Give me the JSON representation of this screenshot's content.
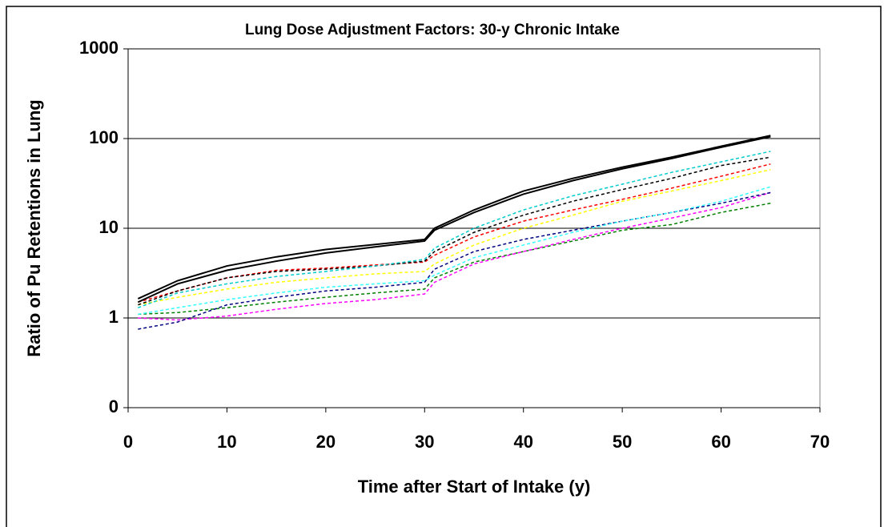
{
  "chart_data": {
    "type": "line",
    "title": "Lung Dose Adjustment Factors: 30-y Chronic Intake",
    "x_label": "Time after Start of Intake (y)",
    "y_label": "Ratio of Pu Retentions in Lung",
    "log_y": true,
    "grid": true,
    "xlim": [
      0,
      70
    ],
    "xticks": [
      0,
      10,
      20,
      30,
      40,
      50,
      60,
      70
    ],
    "ylim": [
      0.1,
      1000
    ],
    "yticks": [
      {
        "value": 0.1,
        "label": "0"
      },
      1,
      10,
      100,
      1000
    ],
    "x": [
      1,
      5,
      10,
      15,
      20,
      25,
      30,
      31,
      35,
      40,
      45,
      50,
      55,
      60,
      65
    ],
    "series": [
      {
        "color": "#000000",
        "dashed": false,
        "values": [
          1.64,
          2.6,
          3.8,
          4.8,
          5.8,
          6.6,
          7.5,
          10,
          16,
          26,
          36,
          48,
          62,
          82,
          108
        ]
      },
      {
        "color": "#000000",
        "dashed": false,
        "values": [
          1.5,
          2.4,
          3.4,
          4.3,
          5.3,
          6.2,
          7.2,
          9.5,
          15,
          24,
          34,
          46,
          60,
          80,
          105
        ]
      },
      {
        "color": "#00cccc",
        "dashed": true,
        "values": [
          1.3,
          1.9,
          2.4,
          2.9,
          3.3,
          3.8,
          4.5,
          6,
          10,
          16,
          23,
          31,
          42,
          55,
          72
        ]
      },
      {
        "color": "#000000",
        "dashed": true,
        "values": [
          1.4,
          2.0,
          2.8,
          3.3,
          3.5,
          3.8,
          4.3,
          5.5,
          9,
          14,
          20,
          27,
          36,
          50,
          62
        ]
      },
      {
        "color": "#ff0000",
        "dashed": true,
        "values": [
          1.5,
          2.0,
          2.8,
          3.4,
          3.6,
          3.9,
          4.2,
          5,
          8,
          12,
          16,
          21,
          28,
          38,
          52
        ]
      },
      {
        "color": "#ffff00",
        "dashed": true,
        "values": [
          1.4,
          1.7,
          2.1,
          2.5,
          2.8,
          3.1,
          3.3,
          4,
          6.5,
          10,
          14,
          20,
          26,
          34,
          45
        ]
      },
      {
        "color": "#33ffff",
        "dashed": true,
        "values": [
          1.1,
          1.3,
          1.6,
          1.9,
          2.2,
          2.4,
          2.6,
          3,
          4.7,
          6.5,
          9,
          12,
          15,
          20,
          29
        ]
      },
      {
        "color": "#000080",
        "dashed": true,
        "values": [
          0.75,
          0.9,
          1.4,
          1.7,
          2.0,
          2.2,
          2.5,
          3.5,
          5.5,
          7.5,
          9.5,
          12,
          15,
          19,
          25
        ]
      },
      {
        "color": "#ff00ff",
        "dashed": true,
        "values": [
          1.0,
          0.95,
          1.05,
          1.25,
          1.45,
          1.6,
          1.85,
          2.5,
          4,
          5.5,
          7.5,
          10,
          13,
          17,
          25
        ]
      },
      {
        "color": "#008000",
        "dashed": true,
        "values": [
          1.1,
          1.15,
          1.3,
          1.5,
          1.7,
          1.9,
          2.1,
          2.8,
          4.2,
          5.5,
          7.2,
          9.5,
          11,
          15,
          19
        ]
      }
    ]
  }
}
